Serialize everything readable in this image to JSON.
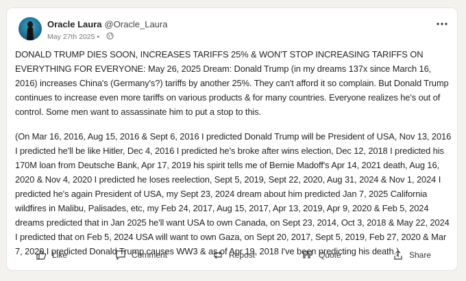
{
  "post": {
    "author": {
      "name": "Oracle Laura",
      "handle": "@Oracle_Laura"
    },
    "date": "May 27th 2025 •",
    "paragraphs": [
      "DONALD TRUMP DIES SOON, INCREASES TARIFFS 25% & WON'T STOP INCREASING TARIFFS ON EVERYTHING FOR EVERYONE: May 26, 2025 Dream: Donald Trump (in my dreams 137x since March 16, 2016) increases China's (Germany's?) tariffs by another 25%. They can't afford it so complain. But Donald Trump continues to increase even more tariffs on various products & for many countries. Everyone realizes he's out of control. Some men want to assassinate him to put a stop to this.",
      "(On Mar 16, 2016, Aug 15, 2016 & Sept 6, 2016 I predicted Donald Trump will be President of USA, Nov 13, 2016 I predicted he'll be like Hitler, Dec 4, 2016 I predicted he's broke after wins election, Dec 12, 2018 I predicted his 170M loan from Deutsche Bank, Apr 17, 2019 his spirit tells me of Bernie Madoff's Apr 14, 2021 death, Aug 16, 2020 & Nov 4, 2020 I predicted he loses reelection, Sept 5, 2019, Sept 22, 2020, Aug 31, 2024 & Nov 1, 2024 I predicted he's again President of USA, my Sept 23, 2024 dream about him predicted Jan 7, 2025 California wildfires in Malibu, Palisades, etc, my Feb 24, 2017, Aug 15, 2017, Apr 13, 2019, Apr 9, 2020 & Feb 5, 2024 dreams predicted that in Jan 2025 he'll want USA to own Canada, on Sept 23, 2014, Oct 3, 2018 & May 22, 2024 I predicted that on Feb 5, 2024 USA will want to own Gaza, on Sept 20, 2017, Sept 5, 2019, Feb 27, 2020 & Mar 7, 2020 I predicted Donald Trump causes WW3 & as of Apr 19, 2018 I've been predicting his death.)"
    ],
    "actions": [
      "Like",
      "Comment",
      "Repost",
      "Quote",
      "Share"
    ]
  }
}
